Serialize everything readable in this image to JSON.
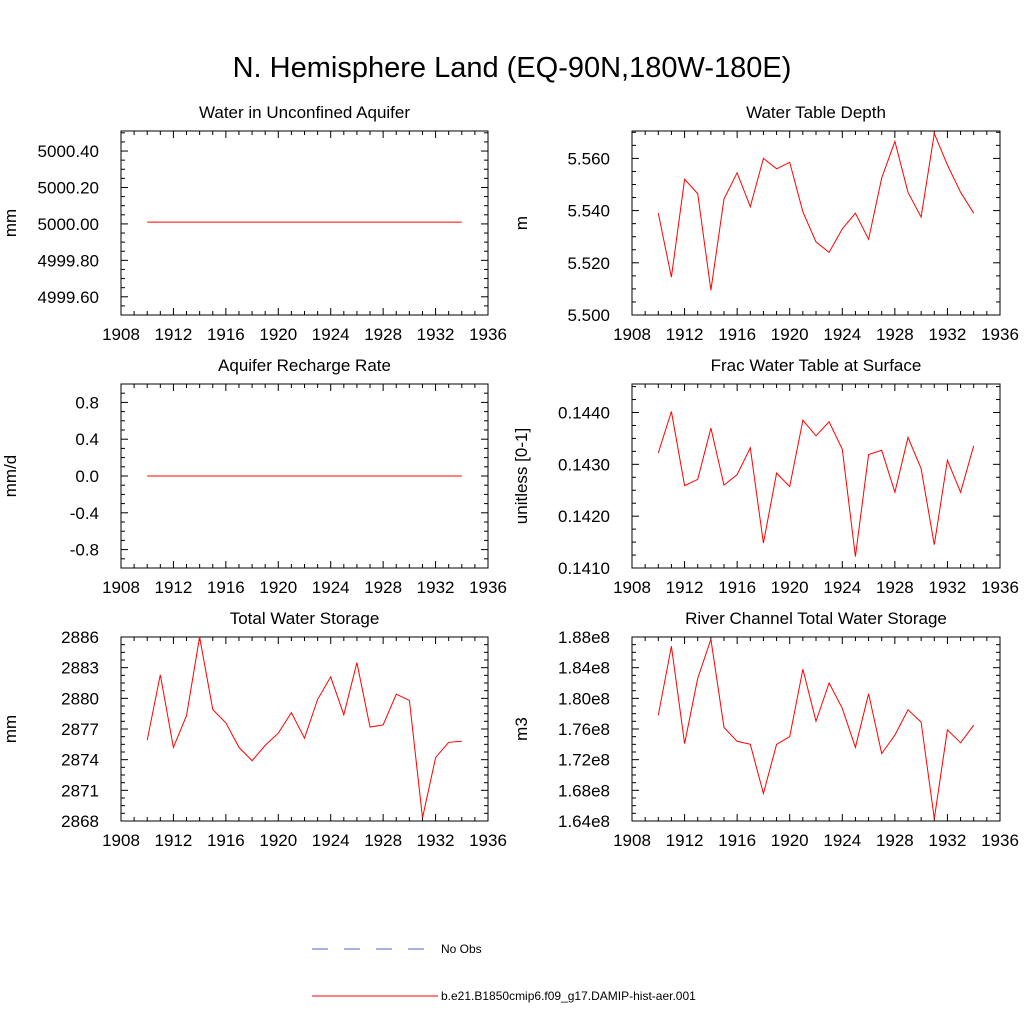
{
  "figure": {
    "title": "N. Hemisphere Land (EQ-90N,180W-180E)"
  },
  "legend": {
    "entries": [
      {
        "label": "No Obs",
        "color": "#5560c8",
        "style": "dashed"
      },
      {
        "label": "b.e21.B1850cmip6.f09_g17.DAMIP-hist-aer.001",
        "color": "#ff0000",
        "style": "solid"
      }
    ]
  },
  "chart_data": [
    {
      "type": "line",
      "title": "Water in Unconfined Aquifer",
      "xlabel": "",
      "ylabel": "mm",
      "xlim": [
        1908,
        1936
      ],
      "ylim": [
        4999.5,
        5000.51
      ],
      "xticks": [
        1908,
        1912,
        1916,
        1920,
        1924,
        1928,
        1932,
        1936
      ],
      "xtick_labels": [
        "1908",
        "1912",
        "1916",
        "1920",
        "1924",
        "1928",
        "1932",
        "1936"
      ],
      "yticks": [
        4999.6,
        4999.8,
        5000.0,
        5000.2,
        5000.4
      ],
      "ytick_labels": [
        "4999.60",
        "4999.80",
        "5000.00",
        "5000.20",
        "5000.40"
      ],
      "series": [
        {
          "color": "#ff0000",
          "x": [
            1910,
            1911,
            1912,
            1913,
            1914,
            1915,
            1916,
            1917,
            1918,
            1919,
            1920,
            1921,
            1922,
            1923,
            1924,
            1925,
            1926,
            1927,
            1928,
            1929,
            1930,
            1931,
            1932,
            1933,
            1934
          ],
          "y": [
            5000.01,
            5000.01,
            5000.01,
            5000.01,
            5000.01,
            5000.01,
            5000.01,
            5000.01,
            5000.01,
            5000.01,
            5000.01,
            5000.01,
            5000.01,
            5000.01,
            5000.01,
            5000.01,
            5000.01,
            5000.01,
            5000.01,
            5000.01,
            5000.01,
            5000.01,
            5000.01,
            5000.01,
            5000.01
          ]
        }
      ]
    },
    {
      "type": "line",
      "title": "Water Table Depth",
      "xlabel": "",
      "ylabel": "m",
      "xlim": [
        1908,
        1936
      ],
      "ylim": [
        5.5,
        5.5705
      ],
      "xticks": [
        1908,
        1912,
        1916,
        1920,
        1924,
        1928,
        1932,
        1936
      ],
      "xtick_labels": [
        "1908",
        "1912",
        "1916",
        "1920",
        "1924",
        "1928",
        "1932",
        "1936"
      ],
      "yticks": [
        5.5,
        5.52,
        5.54,
        5.56
      ],
      "ytick_labels": [
        "5.500",
        "5.520",
        "5.540",
        "5.560"
      ],
      "series": [
        {
          "color": "#ff0000",
          "x": [
            1910,
            1911,
            1912,
            1913,
            1914,
            1915,
            1916,
            1917,
            1918,
            1919,
            1920,
            1921,
            1922,
            1923,
            1924,
            1925,
            1926,
            1927,
            1928,
            1929,
            1930,
            1931,
            1932,
            1933,
            1934
          ],
          "y": [
            5.539,
            5.5145,
            5.552,
            5.5465,
            5.5095,
            5.5445,
            5.5545,
            5.5415,
            5.56,
            5.556,
            5.5585,
            5.5395,
            5.528,
            5.524,
            5.533,
            5.539,
            5.529,
            5.5525,
            5.5665,
            5.547,
            5.5375,
            5.5695,
            5.5575,
            5.547,
            5.539
          ]
        }
      ]
    },
    {
      "type": "line",
      "title": "Aquifer Recharge Rate",
      "xlabel": "",
      "ylabel": "mm/d",
      "xlim": [
        1908,
        1936
      ],
      "ylim": [
        -1.0,
        1.0
      ],
      "xticks": [
        1908,
        1912,
        1916,
        1920,
        1924,
        1928,
        1932,
        1936
      ],
      "xtick_labels": [
        "1908",
        "1912",
        "1916",
        "1920",
        "1924",
        "1928",
        "1932",
        "1936"
      ],
      "yticks": [
        -0.8,
        -0.4,
        0.0,
        0.4,
        0.8
      ],
      "ytick_labels": [
        "-0.8",
        "-0.4",
        "0.0",
        "0.4",
        "0.8"
      ],
      "series": [
        {
          "color": "#ff0000",
          "x": [
            1910,
            1911,
            1912,
            1913,
            1914,
            1915,
            1916,
            1917,
            1918,
            1919,
            1920,
            1921,
            1922,
            1923,
            1924,
            1925,
            1926,
            1927,
            1928,
            1929,
            1930,
            1931,
            1932,
            1933,
            1934
          ],
          "y": [
            0,
            0,
            0,
            0,
            0,
            0,
            0,
            0,
            0,
            0,
            0,
            0,
            0,
            0,
            0,
            0,
            0,
            0,
            0,
            0,
            0,
            0,
            0,
            0,
            0
          ]
        }
      ]
    },
    {
      "type": "line",
      "title": "Frac Water Table at Surface",
      "xlabel": "",
      "ylabel": "unitless [0-1]",
      "xlim": [
        1908,
        1936
      ],
      "ylim": [
        0.141,
        0.14455
      ],
      "xticks": [
        1908,
        1912,
        1916,
        1920,
        1924,
        1928,
        1932,
        1936
      ],
      "xtick_labels": [
        "1908",
        "1912",
        "1916",
        "1920",
        "1924",
        "1928",
        "1932",
        "1936"
      ],
      "yticks": [
        0.141,
        0.142,
        0.143,
        0.144
      ],
      "ytick_labels": [
        "0.1410",
        "0.1420",
        "0.1430",
        "0.1440"
      ],
      "series": [
        {
          "color": "#ff0000",
          "x": [
            1910,
            1911,
            1912,
            1913,
            1914,
            1915,
            1916,
            1917,
            1918,
            1919,
            1920,
            1921,
            1922,
            1923,
            1924,
            1925,
            1926,
            1927,
            1928,
            1929,
            1930,
            1931,
            1932,
            1933,
            1934
          ],
          "y": [
            0.14322,
            0.14402,
            0.14259,
            0.14271,
            0.1437,
            0.1426,
            0.1428,
            0.14332,
            0.14148,
            0.14283,
            0.14257,
            0.14385,
            0.14355,
            0.14382,
            0.14329,
            0.14122,
            0.14319,
            0.14327,
            0.14246,
            0.14352,
            0.14292,
            0.14145,
            0.14308,
            0.14246,
            0.14336
          ]
        }
      ]
    },
    {
      "type": "line",
      "title": "Total Water Storage",
      "xlabel": "",
      "ylabel": "mm",
      "xlim": [
        1908,
        1936
      ],
      "ylim": [
        2868,
        2886
      ],
      "xticks": [
        1908,
        1912,
        1916,
        1920,
        1924,
        1928,
        1932,
        1936
      ],
      "xtick_labels": [
        "1908",
        "1912",
        "1916",
        "1920",
        "1924",
        "1928",
        "1932",
        "1936"
      ],
      "yticks": [
        2868,
        2871,
        2874,
        2877,
        2880,
        2883,
        2886
      ],
      "ytick_labels": [
        "2868",
        "2871",
        "2874",
        "2877",
        "2880",
        "2883",
        "2886"
      ],
      "series": [
        {
          "color": "#ff0000",
          "x": [
            1910,
            1911,
            1912,
            1913,
            1914,
            1915,
            1916,
            1917,
            1918,
            1919,
            1920,
            1921,
            1922,
            1923,
            1924,
            1925,
            1926,
            1927,
            1928,
            1929,
            1930,
            1931,
            1932,
            1933,
            1934
          ],
          "y": [
            2875.9,
            2882.3,
            2875.2,
            2878.3,
            2886.0,
            2878.9,
            2877.6,
            2875.2,
            2873.9,
            2875.4,
            2876.6,
            2878.6,
            2876.1,
            2879.9,
            2882.1,
            2878.4,
            2883.5,
            2877.2,
            2877.4,
            2880.4,
            2879.8,
            2868.3,
            2874.2,
            2875.7,
            2875.8
          ]
        }
      ]
    },
    {
      "type": "line",
      "title": "River Channel Total Water Storage",
      "xlabel": "",
      "ylabel": "m3",
      "xlim": [
        1908,
        1936
      ],
      "ylim": [
        164000000,
        188000000
      ],
      "xticks": [
        1908,
        1912,
        1916,
        1920,
        1924,
        1928,
        1932,
        1936
      ],
      "xtick_labels": [
        "1908",
        "1912",
        "1916",
        "1920",
        "1924",
        "1928",
        "1932",
        "1936"
      ],
      "yticks": [
        164000000,
        168000000,
        172000000,
        176000000,
        180000000,
        184000000,
        188000000
      ],
      "ytick_labels": [
        "1.64e8",
        "1.68e8",
        "1.72e8",
        "1.76e8",
        "1.80e8",
        "1.84e8",
        "1.88e8"
      ],
      "series": [
        {
          "color": "#ff0000",
          "x": [
            1910,
            1911,
            1912,
            1913,
            1914,
            1915,
            1916,
            1917,
            1918,
            1919,
            1920,
            1921,
            1922,
            1923,
            1924,
            1925,
            1926,
            1927,
            1928,
            1929,
            1930,
            1931,
            1932,
            1933,
            1934
          ],
          "y": [
            177800000,
            186800000,
            174100000,
            182600000,
            187700000,
            176200000,
            174400000,
            174000000,
            167600000,
            174000000,
            175000000,
            183800000,
            177000000,
            182000000,
            178700000,
            173600000,
            180600000,
            172800000,
            175200000,
            178500000,
            176900000,
            164300000,
            175900000,
            174200000,
            176500000
          ]
        }
      ]
    }
  ]
}
